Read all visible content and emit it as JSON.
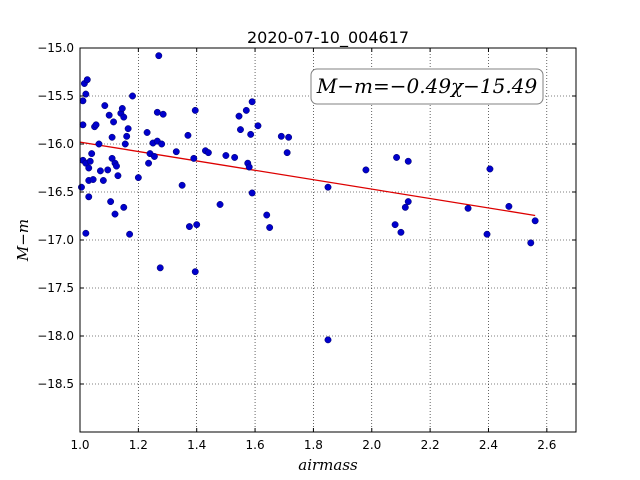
{
  "chart_data": {
    "type": "scatter",
    "title": "2020-07-10_004617",
    "xlabel": "airmass",
    "ylabel": "M−m",
    "xlim": [
      1.0,
      2.7
    ],
    "ylim": [
      -15.0,
      -19.0
    ],
    "y_inverted": true,
    "grid": true,
    "x_ticks": [
      "1.0",
      "1.2",
      "1.4",
      "1.6",
      "1.8",
      "2.0",
      "2.2",
      "2.4",
      "2.6"
    ],
    "x_tick_values": [
      1.0,
      1.2,
      1.4,
      1.6,
      1.8,
      2.0,
      2.2,
      2.4,
      2.6
    ],
    "y_ticks": [
      "−15.0",
      "−15.5",
      "−16.0",
      "−16.5",
      "−17.0",
      "−17.5",
      "−18.0",
      "−18.5"
    ],
    "y_tick_values": [
      -15.0,
      -15.5,
      -16.0,
      -16.5,
      -17.0,
      -17.5,
      -18.0,
      -18.5
    ],
    "annotation": "M−m=−0.49χ−15.49",
    "fit": {
      "slope": -0.49,
      "intercept": -15.49,
      "x_range": [
        1.0,
        2.56
      ],
      "color": "#dd0000"
    },
    "marker_color": "#0000cc",
    "series": [
      {
        "points": [
          [
            1.01,
            -15.55
          ],
          [
            1.015,
            -15.37
          ],
          [
            1.02,
            -15.48
          ],
          [
            1.025,
            -15.33
          ],
          [
            1.01,
            -15.8
          ],
          [
            1.01,
            -16.17
          ],
          [
            1.02,
            -16.2
          ],
          [
            1.035,
            -16.18
          ],
          [
            1.03,
            -16.25
          ],
          [
            1.04,
            -16.1
          ],
          [
            1.005,
            -16.45
          ],
          [
            1.03,
            -16.38
          ],
          [
            1.045,
            -16.37
          ],
          [
            1.03,
            -16.55
          ],
          [
            1.02,
            -16.93
          ],
          [
            1.05,
            -15.82
          ],
          [
            1.055,
            -15.8
          ],
          [
            1.065,
            -16.0
          ],
          [
            1.07,
            -16.28
          ],
          [
            1.08,
            -16.38
          ],
          [
            1.085,
            -15.6
          ],
          [
            1.095,
            -16.27
          ],
          [
            1.1,
            -15.7
          ],
          [
            1.105,
            -16.6
          ],
          [
            1.11,
            -15.93
          ],
          [
            1.11,
            -16.15
          ],
          [
            1.115,
            -15.77
          ],
          [
            1.12,
            -16.2
          ],
          [
            1.125,
            -16.23
          ],
          [
            1.12,
            -16.73
          ],
          [
            1.13,
            -16.33
          ],
          [
            1.14,
            -15.68
          ],
          [
            1.145,
            -15.63
          ],
          [
            1.15,
            -15.72
          ],
          [
            1.15,
            -16.66
          ],
          [
            1.155,
            -16.0
          ],
          [
            1.16,
            -15.92
          ],
          [
            1.165,
            -15.84
          ],
          [
            1.17,
            -16.94
          ],
          [
            1.18,
            -15.5
          ],
          [
            1.2,
            -16.35
          ],
          [
            1.23,
            -15.88
          ],
          [
            1.235,
            -16.2
          ],
          [
            1.24,
            -16.1
          ],
          [
            1.25,
            -15.99
          ],
          [
            1.255,
            -16.13
          ],
          [
            1.265,
            -15.97
          ],
          [
            1.265,
            -15.67
          ],
          [
            1.27,
            -15.08
          ],
          [
            1.275,
            -17.29
          ],
          [
            1.28,
            -16.0
          ],
          [
            1.285,
            -15.69
          ],
          [
            1.33,
            -16.08
          ],
          [
            1.35,
            -16.43
          ],
          [
            1.37,
            -15.91
          ],
          [
            1.375,
            -16.86
          ],
          [
            1.39,
            -16.15
          ],
          [
            1.395,
            -15.65
          ],
          [
            1.395,
            -17.33
          ],
          [
            1.4,
            -16.84
          ],
          [
            1.43,
            -16.07
          ],
          [
            1.44,
            -16.09
          ],
          [
            1.48,
            -16.63
          ],
          [
            1.5,
            -16.12
          ],
          [
            1.53,
            -16.14
          ],
          [
            1.545,
            -15.71
          ],
          [
            1.55,
            -15.85
          ],
          [
            1.57,
            -15.65
          ],
          [
            1.575,
            -16.2
          ],
          [
            1.58,
            -16.24
          ],
          [
            1.585,
            -15.9
          ],
          [
            1.59,
            -15.56
          ],
          [
            1.59,
            -16.51
          ],
          [
            1.61,
            -15.81
          ],
          [
            1.64,
            -16.74
          ],
          [
            1.65,
            -16.87
          ],
          [
            1.69,
            -15.92
          ],
          [
            1.71,
            -16.09
          ],
          [
            1.715,
            -15.93
          ],
          [
            1.85,
            -16.45
          ],
          [
            1.85,
            -18.04
          ],
          [
            1.98,
            -16.27
          ],
          [
            2.08,
            -16.84
          ],
          [
            2.085,
            -16.14
          ],
          [
            2.1,
            -16.92
          ],
          [
            2.115,
            -16.66
          ],
          [
            2.125,
            -16.18
          ],
          [
            2.125,
            -16.6
          ],
          [
            2.33,
            -16.67
          ],
          [
            2.395,
            -16.94
          ],
          [
            2.405,
            -16.26
          ],
          [
            2.47,
            -16.65
          ],
          [
            2.545,
            -17.03
          ],
          [
            2.56,
            -16.8
          ]
        ]
      }
    ]
  }
}
